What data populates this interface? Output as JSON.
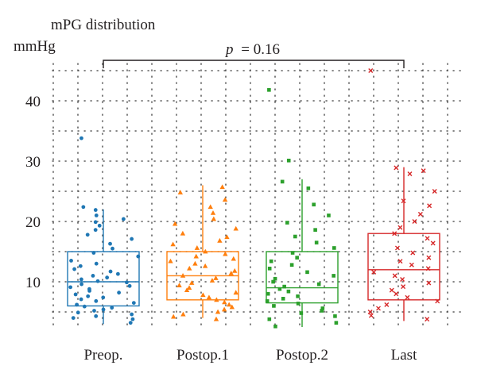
{
  "chart_data": {
    "type": "box",
    "title": "mPG distribution",
    "ylabel": "mmHg",
    "ylim": [
      2,
      45
    ],
    "yticks": [
      10,
      20,
      30,
      40
    ],
    "grid": true,
    "categories": [
      "Preop.",
      "Postop.1",
      "Postop.2",
      "Last"
    ],
    "annotation": {
      "p_label": "p",
      "p_value": "= 0.16"
    },
    "series": [
      {
        "category": "Preop.",
        "color": "#1f77b4",
        "marker": "circle",
        "box": {
          "whisker_low": 3,
          "q1": 6,
          "median": 10,
          "q3": 15,
          "whisker_high": 22
        },
        "points": [
          3.2,
          3.8,
          4.0,
          4.3,
          4.6,
          4.9,
          5.2,
          5.4,
          5.7,
          5.9,
          6.2,
          6.5,
          6.8,
          7.1,
          7.4,
          7.6,
          7.9,
          8.2,
          8.5,
          8.8,
          9.1,
          9.3,
          9.6,
          9.9,
          10.1,
          10.4,
          10.7,
          11.0,
          11.3,
          11.7,
          12.1,
          12.6,
          13.0,
          13.5,
          14.2,
          14.8,
          15.5,
          16.3,
          17.1,
          17.8,
          18.6,
          19.3,
          19.9,
          20.4,
          21.0,
          21.9,
          22.4,
          33.8
        ]
      },
      {
        "category": "Postop.1",
        "color": "#ff7f0e",
        "marker": "triangle",
        "box": {
          "whisker_low": 4,
          "q1": 7,
          "median": 11,
          "q3": 15,
          "whisker_high": 26
        },
        "points": [
          3.8,
          4.2,
          4.6,
          5.0,
          5.4,
          5.8,
          6.2,
          6.6,
          7.0,
          7.4,
          7.8,
          8.2,
          8.6,
          9.0,
          9.4,
          9.8,
          10.2,
          10.6,
          11.0,
          11.4,
          11.8,
          12.2,
          12.6,
          13.0,
          13.4,
          13.8,
          14.2,
          14.6,
          15.0,
          15.6,
          16.2,
          16.8,
          17.4,
          18.0,
          18.8,
          19.6,
          20.4,
          21.4,
          22.4,
          23.6,
          24.8,
          25.7
        ]
      },
      {
        "category": "Postop.2",
        "color": "#2ca02c",
        "marker": "square",
        "box": {
          "whisker_low": 2.5,
          "q1": 6.5,
          "median": 9,
          "q3": 15,
          "whisker_high": 27
        },
        "points": [
          2.6,
          3.2,
          3.8,
          4.3,
          4.8,
          5.2,
          5.6,
          6.0,
          6.4,
          6.8,
          7.2,
          7.6,
          8.0,
          8.4,
          8.8,
          9.2,
          9.6,
          10.0,
          10.5,
          11.0,
          11.6,
          12.2,
          12.8,
          13.4,
          14.0,
          14.8,
          15.6,
          16.5,
          17.5,
          18.6,
          19.8,
          21.0,
          22.8,
          25.5,
          26.6,
          30.1,
          41.8
        ]
      },
      {
        "category": "Last",
        "color": "#d62728",
        "marker": "cross",
        "box": {
          "whisker_low": 3.5,
          "q1": 7,
          "median": 12,
          "q3": 18,
          "whisker_high": 29
        },
        "points": [
          3.8,
          4.4,
          5.0,
          5.6,
          6.2,
          6.8,
          7.4,
          8.0,
          8.6,
          9.2,
          9.8,
          10.4,
          11.0,
          11.6,
          12.2,
          12.8,
          13.4,
          14.0,
          14.8,
          15.6,
          16.4,
          17.2,
          18.0,
          19.0,
          20.0,
          21.2,
          22.6,
          23.4,
          25.0,
          27.9,
          28.4,
          28.9,
          45.0
        ]
      }
    ]
  }
}
